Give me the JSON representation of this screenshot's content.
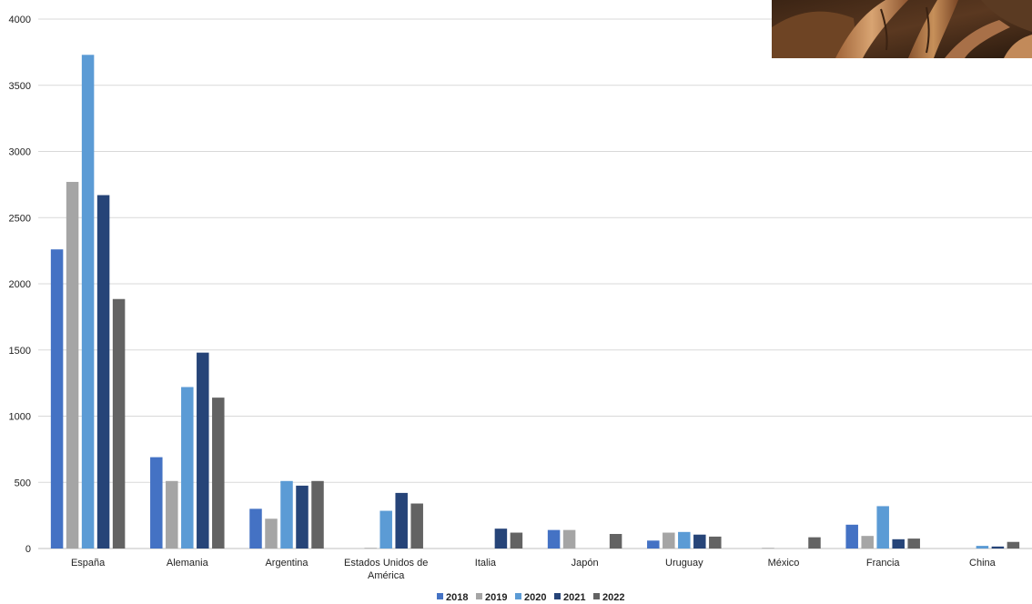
{
  "chart_data": {
    "type": "bar",
    "categories": [
      "España",
      "Alemania",
      "Argentina",
      "Estados Unidos de América",
      "Italia",
      "Japón",
      "Uruguay",
      "México",
      "Francia",
      "China"
    ],
    "category_label_lines": [
      [
        "España"
      ],
      [
        "Alemania"
      ],
      [
        "Argentina"
      ],
      [
        "Estados Unidos de",
        "América"
      ],
      [
        "Italia"
      ],
      [
        "Japón"
      ],
      [
        "Uruguay"
      ],
      [
        "México"
      ],
      [
        "Francia"
      ],
      [
        "China"
      ]
    ],
    "series": [
      {
        "name": "2018",
        "color": "#4472c4",
        "values": [
          2260,
          690,
          300,
          0,
          0,
          140,
          60,
          0,
          180,
          0
        ]
      },
      {
        "name": "2019",
        "color": "#a5a5a5",
        "values": [
          2770,
          510,
          225,
          5,
          0,
          140,
          120,
          5,
          95,
          0
        ]
      },
      {
        "name": "2020",
        "color": "#5b9bd5",
        "values": [
          3730,
          1220,
          510,
          285,
          0,
          0,
          125,
          0,
          320,
          20
        ]
      },
      {
        "name": "2021",
        "color": "#264478",
        "values": [
          2670,
          1480,
          475,
          420,
          150,
          0,
          105,
          0,
          70,
          15
        ]
      },
      {
        "name": "2022",
        "color": "#636363",
        "values": [
          1885,
          1140,
          510,
          340,
          120,
          110,
          90,
          85,
          75,
          50
        ]
      }
    ],
    "ylim": [
      0,
      4000
    ],
    "yticks": [
      "0",
      "500",
      "1000",
      "1500",
      "2000",
      "2500",
      "3000",
      "3500",
      "4000"
    ],
    "grid": true,
    "legend_position": "bottom",
    "title": "",
    "xlabel": "",
    "ylabel": ""
  }
}
